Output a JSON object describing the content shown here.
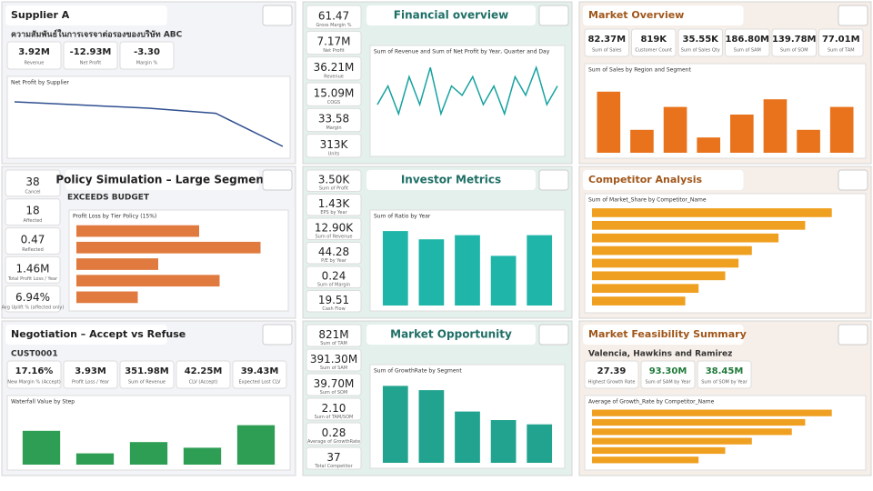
{
  "panels": [
    {
      "title": "Supplier A",
      "subtitle": "ความสัมพันธ์ในการเจรจาต่อรองของบริษัท ABC",
      "layout": "top",
      "bg": "#f2f4f7",
      "accent": "#1f1f1f",
      "color": "#2f4f8f",
      "kpis": [
        {
          "value": "3.92M",
          "label": "Revenue"
        },
        {
          "value": "-12.93M",
          "label": "Net Profit"
        },
        {
          "value": "-3.30",
          "label": "Margin %"
        }
      ],
      "chart": {
        "type": "line",
        "title": "Net Profit by Supplier",
        "values": [
          8,
          7.5,
          7,
          6.2,
          1
        ],
        "ylim": [
          0,
          10
        ]
      }
    },
    {
      "title": "Financial overview",
      "layout": "left",
      "bg": "#e4f0ec",
      "accent": "#1f6f66",
      "color": "#17a2a0",
      "kpis": [
        {
          "value": "61.47",
          "label": "Gross Margin %"
        },
        {
          "value": "7.17M",
          "label": "Net Profit"
        },
        {
          "value": "36.21M",
          "label": "Revenue"
        },
        {
          "value": "15.09M",
          "label": "COGS"
        },
        {
          "value": "33.58",
          "label": "Margin"
        },
        {
          "value": "313K",
          "label": "Units"
        }
      ],
      "chart": {
        "type": "line",
        "title": "Sum of Revenue and Sum of Net Profit by Year, Quarter and Day",
        "values": [
          5,
          7,
          4,
          8,
          5,
          9,
          4,
          7,
          6,
          8,
          5,
          7,
          4,
          8,
          6,
          9,
          5,
          7
        ],
        "ylim": [
          0,
          10
        ]
      }
    },
    {
      "title": "Market Overview",
      "layout": "top",
      "bg": "#f6eee8",
      "accent": "#a0561a",
      "color": "#e8731c",
      "kpis": [
        {
          "value": "82.37M",
          "label": "Sum of Sales"
        },
        {
          "value": "819K",
          "label": "Customer Count"
        },
        {
          "value": "35.55K",
          "label": "Sum of Sales Qty"
        },
        {
          "value": "186.80M",
          "label": "Sum of SAM"
        },
        {
          "value": "139.78M",
          "label": "Sum of SOM"
        },
        {
          "value": "77.01M",
          "label": "Sum of TAM"
        }
      ],
      "chart": {
        "type": "bar",
        "title": "Sum of Sales by Region and Segment",
        "values": [
          8,
          3,
          6,
          2,
          5,
          7,
          3,
          6
        ],
        "ylim": [
          0,
          10
        ]
      }
    },
    {
      "title": "Policy Simulation – Large Segment",
      "subtitle": "EXCEEDS BUDGET",
      "layout": "left",
      "bg": "#f2f4f7",
      "accent": "#1f1f1f",
      "color": "#e07a3f",
      "kpis": [
        {
          "value": "38",
          "label": "Cancel"
        },
        {
          "value": "18",
          "label": "Affected"
        },
        {
          "value": "0.47",
          "label": "Reflected"
        },
        {
          "value": "1.46M",
          "label": "Total Profit Loss / Year"
        },
        {
          "value": "6.94%",
          "label": "Avg Uplift % (affected only)"
        }
      ],
      "chart": {
        "type": "hbar",
        "title": "Profit Loss by Tier Policy (15%)",
        "values": [
          6,
          9,
          4,
          7,
          3
        ],
        "ylim": [
          0,
          10
        ]
      }
    },
    {
      "title": "Investor Metrics",
      "layout": "left",
      "bg": "#e4f0ec",
      "accent": "#1f6f66",
      "color": "#1fb5a8",
      "kpis": [
        {
          "value": "3.50K",
          "label": "Sum of Profit"
        },
        {
          "value": "1.43K",
          "label": "EPS by Year"
        },
        {
          "value": "12.90K",
          "label": "Sum of Revenue"
        },
        {
          "value": "44.28",
          "label": "P/E by Year"
        },
        {
          "value": "0.24",
          "label": "Sum of Margin"
        },
        {
          "value": "19.51",
          "label": "Cash Flow"
        }
      ],
      "chart": {
        "type": "bar",
        "title": "Sum of Ratio by Year",
        "values": [
          9,
          8,
          8.5,
          6,
          8.5
        ],
        "ylim": [
          0,
          10
        ]
      }
    },
    {
      "title": "Competitor Analysis",
      "layout": "top",
      "bg": "#f6eee8",
      "accent": "#a0561a",
      "color": "#f0a020",
      "kpis": [],
      "chart": {
        "type": "hbar",
        "title": "Sum of Market_Share by Competitor_Name",
        "values": [
          9,
          8,
          7,
          6,
          5.5,
          5,
          4,
          3.5
        ],
        "ylim": [
          0,
          10
        ]
      }
    },
    {
      "title": "Negotiation – Accept vs Refuse",
      "subtitle": "CUST0001",
      "layout": "top",
      "bg": "#f2f4f7",
      "accent": "#1f1f1f",
      "color": "#2f9e55",
      "kpis": [
        {
          "value": "17.16%",
          "label": "New Margin % (Accept)"
        },
        {
          "value": "3.93M",
          "label": "Profit Loss / Year"
        },
        {
          "value": "351.98M",
          "label": "Sum of Revenue"
        },
        {
          "value": "42.25M",
          "label": "CLV (Accept)"
        },
        {
          "value": "39.43M",
          "label": "Expected Lost CLV"
        }
      ],
      "chart": {
        "type": "bar",
        "title": "Waterfall Value by Step",
        "values": [
          6,
          2,
          4,
          3,
          7
        ],
        "ylim": [
          0,
          10
        ]
      }
    },
    {
      "title": "Market Opportunity",
      "layout": "left",
      "bg": "#e4f0ec",
      "accent": "#1f6f66",
      "color": "#21a38f",
      "kpis": [
        {
          "value": "821M",
          "label": "Sum of TAM"
        },
        {
          "value": "391.30M",
          "label": "Sum of SAM"
        },
        {
          "value": "39.70M",
          "label": "Sum of SOM"
        },
        {
          "value": "2.10",
          "label": "Sum of TAM/SOM"
        },
        {
          "value": "0.28",
          "label": "Average of GrowthRate"
        },
        {
          "value": "37",
          "label": "Total Competitor"
        }
      ],
      "chart": {
        "type": "bar",
        "title": "Sum of GrowthRate by Segment",
        "values": [
          9,
          8.5,
          6,
          5,
          4.5
        ],
        "ylim": [
          0,
          10
        ]
      }
    },
    {
      "title": "Market Feasibility Summary",
      "subtitle": "Valencia, Hawkins and Ramirez",
      "layout": "top",
      "bg": "#f6eee8",
      "accent": "#a0561a",
      "color": "#f0a020",
      "kpis": [
        {
          "value": "27.39",
          "label": "Highest Growth Rate"
        },
        {
          "value": "93.30M",
          "label": "Sum of SAM by Year"
        },
        {
          "value": "38.45M",
          "label": "Sum of SOM by Year"
        }
      ],
      "chart": {
        "type": "hbar",
        "title": "Average of Growth_Rate by Competitor_Name",
        "values": [
          9,
          8,
          7.5,
          6,
          5,
          4
        ],
        "ylim": [
          0,
          10
        ]
      }
    }
  ]
}
